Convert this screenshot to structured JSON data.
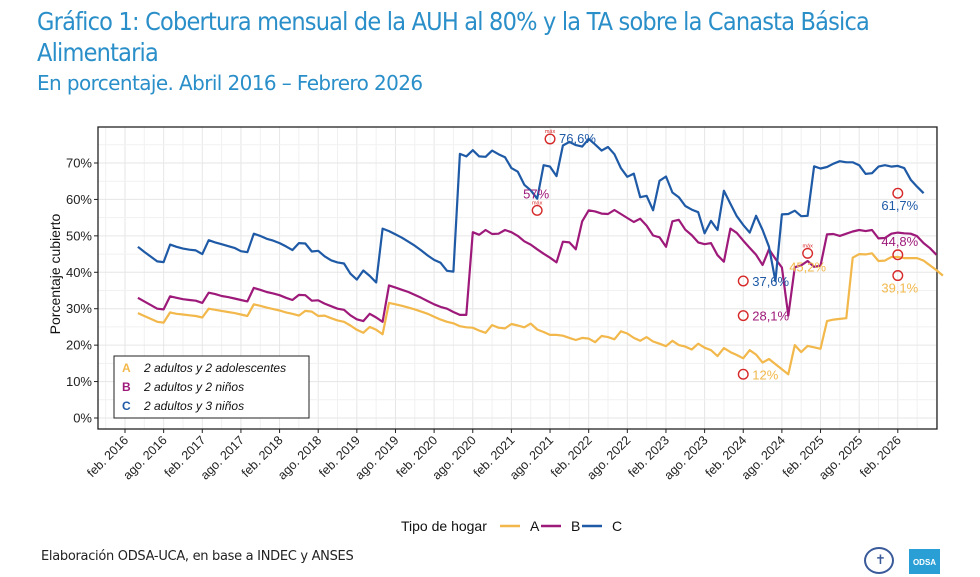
{
  "title": "Gráfico 1: Cobertura mensual de la AUH al 80% y la TA sobre la Canasta Básica Alimentaria",
  "subtitle": "En porcentaje. Abril 2016 – Febrero 2026",
  "footer": "Elaboración ODSA-UCA, en base a INDEC y ANSES",
  "logos": {
    "seal": "UCA seal",
    "odsa": "ODSA"
  },
  "chart_data": {
    "type": "line",
    "title": "Cobertura mensual de la AUH al 80% y la TA sobre la Canasta Básica Alimentaria",
    "xlabel": "",
    "ylabel": "Porcentaje cubierto",
    "ylim": [
      0,
      78
    ],
    "yticks": [
      0,
      10,
      20,
      30,
      40,
      50,
      60,
      70
    ],
    "ytick_labels": [
      "0%",
      "10%",
      "20%",
      "30%",
      "40%",
      "50%",
      "60%",
      "70%"
    ],
    "xtick_labels": [
      "feb. 2016",
      "ago. 2016",
      "feb. 2017",
      "ago. 2017",
      "feb. 2018",
      "ago. 2018",
      "feb. 2019",
      "ago. 2019",
      "feb. 2020",
      "ago. 2020",
      "feb. 2021",
      "ago. 2021",
      "feb. 2022",
      "ago. 2022",
      "feb. 2023",
      "ago. 2023",
      "feb. 2024",
      "ago. 2024",
      "feb. 2025",
      "ago. 2025",
      "feb. 2026"
    ],
    "x_start": "abr. 2016",
    "x_end": "feb. 2026",
    "grid": true,
    "legend": {
      "title": "Tipo de hogar",
      "placement": "bottom",
      "entries": [
        "A",
        "B",
        "C"
      ]
    },
    "inset_legend": {
      "placement": "bottom-left",
      "entries": [
        {
          "key": "A",
          "label": "2 adultos y 2 adolescentes"
        },
        {
          "key": "B",
          "label": "2 adultos y 2 niños"
        },
        {
          "key": "C",
          "label": "2 adultos y 3 niños"
        }
      ]
    },
    "series": [
      {
        "name": "A",
        "color": "#f2b84b",
        "values": [
          28.8,
          28.0,
          27.2,
          26.4,
          26.2,
          29.0,
          28.6,
          28.4,
          28.2,
          28.0,
          27.6,
          30.0,
          29.7,
          29.4,
          29.1,
          28.8,
          28.4,
          28.0,
          31.2,
          30.8,
          30.3,
          29.9,
          29.5,
          29.0,
          28.6,
          28.1,
          29.4,
          29.2,
          28.0,
          28.1,
          27.4,
          26.8,
          26.4,
          25.4,
          24.2,
          23.4,
          25.0,
          24.2,
          23.0,
          31.6,
          31.2,
          30.8,
          30.3,
          29.8,
          29.2,
          28.6,
          27.8,
          27.0,
          26.4,
          26.0,
          25.2,
          24.9,
          24.8,
          24.0,
          23.4,
          25.5,
          24.8,
          24.6,
          25.8,
          25.4,
          24.9,
          25.9,
          24.3,
          23.6,
          22.8,
          22.8,
          22.6,
          22.0,
          21.4,
          22.0,
          21.8,
          20.8,
          22.5,
          22.2,
          21.6,
          23.8,
          23.2,
          22.0,
          21.2,
          22.2,
          21.0,
          20.4,
          19.7,
          21.2,
          20.0,
          19.6,
          18.8,
          20.4,
          19.3,
          18.6,
          17.0,
          19.2,
          18.1,
          17.3,
          16.4,
          18.6,
          17.4,
          15.2,
          16.2,
          14.8,
          13.4,
          12.0,
          20.0,
          18.1,
          19.8,
          19.4,
          19.0,
          26.6,
          27.0,
          27.2,
          27.4,
          44.0,
          45.0,
          44.9,
          45.2,
          43.1,
          43.2,
          44.2,
          44.2,
          43.9,
          43.9,
          43.9,
          43.2,
          41.9,
          40.6,
          39.1
        ],
        "annotations": [
          {
            "label": "12%",
            "at": "feb. 2024",
            "value": 12.0,
            "kind": "min"
          },
          {
            "label": "45,2%",
            "at": "dic. 2024",
            "value": 45.2,
            "kind": "máx"
          },
          {
            "label": "39,1%",
            "at": "feb. 2026",
            "value": 39.1,
            "kind": "last"
          }
        ]
      },
      {
        "name": "B",
        "color": "#9e1a7a",
        "values": [
          33.0,
          32.0,
          31.0,
          30.0,
          29.8,
          33.4,
          33.0,
          32.6,
          32.4,
          32.2,
          31.6,
          34.4,
          34.0,
          33.5,
          33.2,
          32.8,
          32.4,
          32.0,
          35.7,
          35.2,
          34.6,
          34.2,
          33.7,
          33.0,
          32.4,
          33.8,
          33.7,
          32.2,
          32.3,
          31.4,
          30.7,
          30.0,
          29.7,
          28.2,
          27.1,
          26.6,
          28.6,
          27.6,
          26.4,
          36.4,
          35.8,
          35.2,
          34.6,
          33.8,
          33.0,
          32.1,
          31.2,
          30.5,
          30.0,
          29.1,
          28.3,
          28.3,
          51.0,
          50.3,
          51.6,
          50.5,
          50.6,
          51.6,
          51.0,
          50.0,
          48.5,
          47.6,
          46.3,
          45.1,
          44.0,
          42.7,
          48.4,
          48.2,
          46.3,
          54.0,
          57.0,
          56.7,
          56.1,
          56.0,
          57.1,
          56.0,
          54.9,
          53.8,
          54.7,
          52.8,
          50.1,
          49.6,
          47.0,
          54.0,
          54.4,
          51.7,
          50.2,
          48.2,
          47.7,
          48.0,
          44.7,
          42.9,
          52.0,
          50.8,
          48.7,
          46.7,
          44.8,
          42.0,
          46.3,
          43.7,
          41.3,
          28.1,
          41.4,
          41.9,
          43.1,
          41.5,
          41.8,
          50.4,
          50.5,
          50.0,
          50.6,
          51.2,
          51.6,
          51.3,
          51.6,
          49.3,
          49.4,
          50.6,
          50.9,
          50.7,
          50.6,
          49.9,
          48.0,
          46.6,
          44.8
        ],
        "annotations": [
          {
            "label": "57%",
            "at": "jun. 2021",
            "value": 57.0,
            "kind": "máx"
          },
          {
            "label": "28,1%",
            "at": "feb. 2024",
            "value": 28.1,
            "kind": "min"
          },
          {
            "label": "44,8%",
            "at": "feb. 2026",
            "value": 44.8,
            "kind": "last"
          }
        ]
      },
      {
        "name": "C",
        "color": "#1f5aa6",
        "values": [
          47.0,
          45.6,
          44.3,
          43.0,
          42.8,
          47.6,
          47.0,
          46.5,
          46.2,
          46.0,
          45.0,
          48.8,
          48.2,
          47.7,
          47.2,
          46.7,
          45.8,
          45.5,
          50.6,
          50.0,
          49.2,
          48.7,
          48.0,
          47.1,
          46.1,
          48.0,
          47.9,
          45.7,
          45.9,
          44.4,
          43.3,
          42.7,
          42.4,
          39.6,
          38.0,
          40.5,
          39.0,
          37.2,
          52.0,
          51.3,
          50.4,
          49.5,
          48.4,
          47.3,
          46.0,
          44.6,
          43.4,
          42.6,
          40.4,
          40.2,
          72.5,
          71.8,
          73.5,
          71.8,
          71.7,
          73.4,
          72.4,
          71.6,
          68.6,
          67.6,
          64.0,
          62.5,
          60.2,
          69.4,
          69.0,
          66.4,
          74.8,
          75.8,
          74.9,
          74.5,
          76.6,
          75.1,
          73.4,
          74.4,
          72.4,
          68.6,
          66.2,
          67.1,
          60.6,
          61.0,
          57.0,
          65.1,
          66.3,
          61.9,
          60.6,
          58.2,
          57.2,
          56.5,
          50.7,
          54.1,
          51.6,
          62.4,
          58.8,
          55.4,
          53.0,
          50.9,
          55.5,
          51.6,
          47.0,
          37.6,
          55.9,
          56.0,
          56.9,
          55.4,
          55.5,
          69.1,
          68.5,
          68.9,
          69.8,
          70.5,
          70.2,
          70.2,
          69.4,
          67.0,
          67.2,
          69.0,
          69.4,
          69.0,
          69.2,
          68.6,
          65.4,
          63.5,
          61.7
        ],
        "annotations": [
          {
            "label": "76,6%",
            "at": "ago. 2021",
            "value": 76.6,
            "kind": "máx"
          },
          {
            "label": "37,6%",
            "at": "feb. 2024",
            "value": 37.6,
            "kind": "min"
          },
          {
            "label": "61,7%",
            "at": "feb. 2026",
            "value": 61.7,
            "kind": "last"
          }
        ]
      }
    ]
  }
}
